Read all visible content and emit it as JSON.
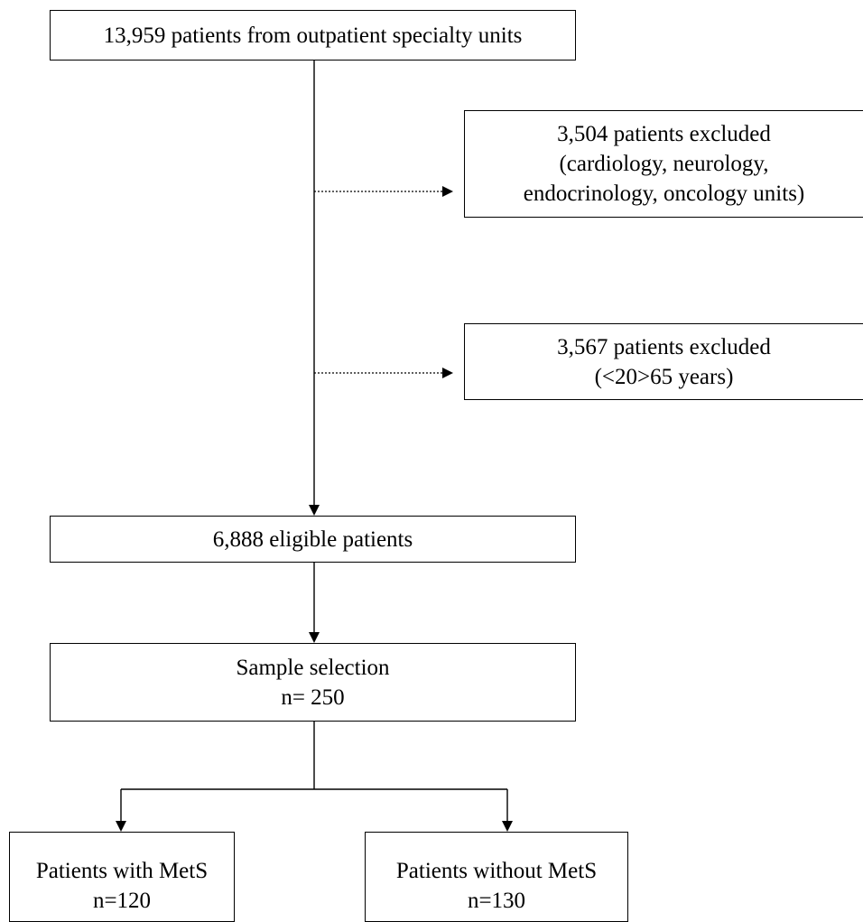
{
  "flowchart": {
    "source": "13,959 patients from outpatient specialty units",
    "exclusion_1": {
      "line1": "3,504 patients excluded",
      "line2": "(cardiology, neurology,",
      "line3": "endocrinology, oncology units)"
    },
    "exclusion_2": {
      "line1": "3,567 patients excluded",
      "line2": "(<20>65 years)"
    },
    "eligible": "6,888 eligible patients",
    "sample": {
      "line1": "Sample selection",
      "line2": "n= 250"
    },
    "group_mets": {
      "line1": "Patients with MetS",
      "line2": "n=120"
    },
    "group_no_mets": {
      "line1": "Patients without MetS",
      "line2": "n=130"
    }
  },
  "style": {
    "line_color": "#000000",
    "box_border_color": "#000000",
    "background": "#ffffff"
  }
}
